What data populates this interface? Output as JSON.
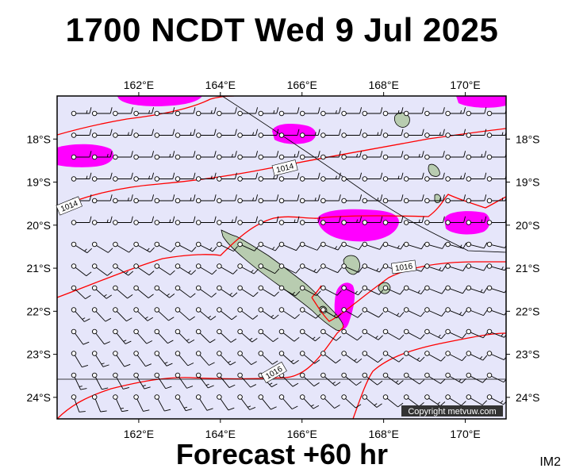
{
  "title": "1700 NCDT Wed 9 Jul 2025",
  "footer": "Forecast +60 hr",
  "model_tag": "IM2",
  "copyright": "Copyright metvuw.com",
  "map": {
    "lon_range": [
      160.0,
      171.0
    ],
    "lat_range": [
      -17.0,
      -24.5
    ],
    "lon_ticks": [
      {
        "value": 162,
        "label": "162°E"
      },
      {
        "value": 164,
        "label": "164°E"
      },
      {
        "value": 166,
        "label": "166°E"
      },
      {
        "value": 168,
        "label": "168°E"
      },
      {
        "value": 170,
        "label": "170°E"
      }
    ],
    "lat_ticks": [
      {
        "value": -18,
        "label": "18°S"
      },
      {
        "value": -19,
        "label": "19°S"
      },
      {
        "value": -20,
        "label": "20°S"
      },
      {
        "value": -21,
        "label": "21°S"
      },
      {
        "value": -22,
        "label": "22°S"
      },
      {
        "value": -23,
        "label": "23°S"
      },
      {
        "value": -24,
        "label": "24°S"
      }
    ],
    "isobar_labels": [
      "1014",
      "1014",
      "1016",
      "1016"
    ],
    "colors": {
      "ocean": "#e6e6fa",
      "isobar": "#ff0000",
      "precip": "#ff00ff",
      "land": "#b8ccb0",
      "wind": "#000000"
    }
  }
}
